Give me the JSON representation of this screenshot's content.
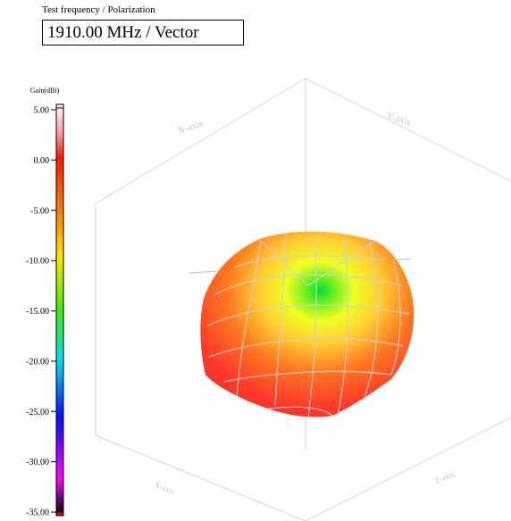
{
  "header": {
    "label": "Test frequency / Polarization",
    "value": "1910.00 MHz / Vector"
  },
  "chart_data": {
    "type": "surface3d",
    "colorbar": {
      "title": "Gain(dBi)",
      "ticks": [
        "5.00",
        "0.00",
        "-5.00",
        "-10.00",
        "-15.00",
        "-20.00",
        "-25.00",
        "-30.00",
        "-35.00"
      ],
      "range": [
        -35,
        5
      ]
    },
    "axes": {
      "x": "X-axis",
      "y": "Y-axis",
      "z": "Z-axis",
      "front_left": "X-axis",
      "front_right": "Z-axis"
    },
    "colors": [
      "#ffffff",
      "#ff1a00",
      "#ffff00",
      "#00ff00",
      "#00ffff",
      "#0000ff",
      "#ff00ff",
      "#000000"
    ]
  }
}
